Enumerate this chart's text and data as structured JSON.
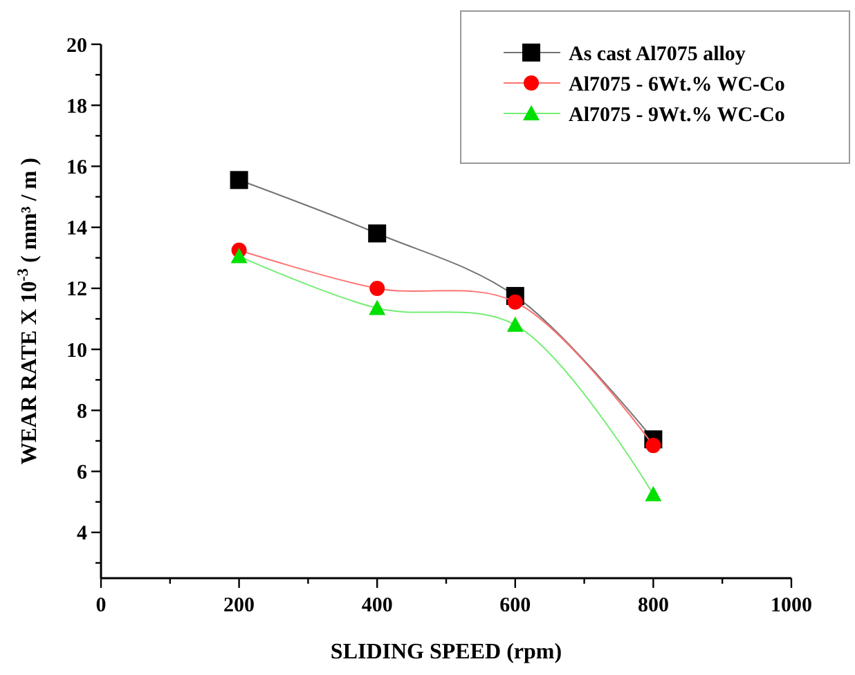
{
  "chart_data": {
    "type": "line",
    "xlabel": "SLIDING SPEED  (rpm)",
    "ylabel": "WEAR  RATE  X 10$^{-3}$  ( mm³ / m )",
    "x": [
      200,
      400,
      600,
      800
    ],
    "series": [
      {
        "name": "As cast  Al7075 alloy",
        "color": "#000000",
        "marker": "square",
        "values": [
          15.55,
          13.8,
          11.75,
          7.05
        ]
      },
      {
        "name": "Al7075 - 6Wt.% WC-Co",
        "color": "#ff0000",
        "marker": "circle",
        "values": [
          13.25,
          12.0,
          11.55,
          6.85
        ]
      },
      {
        "name": "Al7075 - 9Wt.% WC-Co",
        "color": "#00e000",
        "marker": "triangle",
        "values": [
          13.05,
          11.35,
          10.8,
          5.25
        ]
      }
    ],
    "xlim": [
      0,
      1000
    ],
    "xticks": [
      0,
      {
        "value": 100,
        "label": null
      },
      200,
      {
        "value": 300,
        "label": null
      },
      400,
      {
        "value": 500,
        "label": null
      },
      600,
      {
        "value": 700,
        "label": null
      },
      800,
      {
        "value": 900,
        "label": null
      },
      1000
    ],
    "ylim": [
      2.5,
      20
    ],
    "yticks": [
      {
        "value": 3,
        "label": null
      },
      4,
      {
        "value": 5,
        "label": null
      },
      6,
      {
        "value": 7,
        "label": null
      },
      8,
      {
        "value": 9,
        "label": null
      },
      10,
      {
        "value": 11,
        "label": null
      },
      12,
      {
        "value": 13,
        "label": null
      },
      14,
      {
        "value": 15,
        "label": null
      },
      16,
      {
        "value": 17,
        "label": null
      },
      18,
      {
        "value": 19,
        "label": null
      },
      20
    ],
    "grid": false,
    "legend": "top right"
  }
}
